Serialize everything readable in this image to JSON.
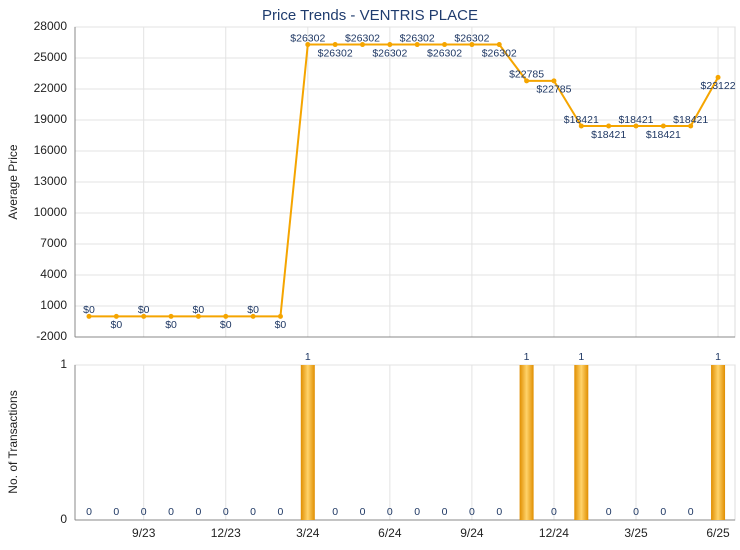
{
  "chart_data": [
    {
      "type": "line",
      "title": "Price Trends - VENTRIS PLACE",
      "ylabel": "Average Price",
      "color": "#f5a500",
      "values": [
        0,
        0,
        0,
        0,
        0,
        0,
        0,
        0,
        26302,
        26302,
        26302,
        26302,
        26302,
        26302,
        26302,
        26302,
        22785,
        22785,
        18421,
        18421,
        18421,
        18421,
        18421,
        23122
      ],
      "value_labels": [
        "$0",
        "$0",
        "$0",
        "$0",
        "$0",
        "$0",
        "$0",
        "$0",
        "$26302",
        "$26302",
        "$26302",
        "$26302",
        "$26302",
        "$26302",
        "$26302",
        "$26302",
        "$22785",
        "$22785",
        "$18421",
        "$18421",
        "$18421",
        "$18421",
        "$18421",
        "$23122"
      ],
      "ylim": [
        -2000,
        28000
      ],
      "yticks": [
        -2000,
        1000,
        4000,
        7000,
        10000,
        13000,
        16000,
        19000,
        22000,
        25000,
        28000
      ],
      "grid": true
    },
    {
      "type": "bar",
      "ylabel": "No. of Transactions",
      "color": "#f0a000",
      "categories": [
        null,
        null,
        "9/23",
        null,
        null,
        "12/23",
        null,
        null,
        "3/24",
        null,
        null,
        "6/24",
        null,
        null,
        "9/24",
        null,
        null,
        "12/24",
        null,
        null,
        "3/25",
        null,
        null,
        "6/25"
      ],
      "values": [
        0,
        0,
        0,
        0,
        0,
        0,
        0,
        0,
        1,
        0,
        0,
        0,
        0,
        0,
        0,
        0,
        1,
        0,
        1,
        0,
        0,
        0,
        0,
        1
      ],
      "ylim": [
        0,
        1
      ],
      "yticks": [
        0,
        1
      ],
      "grid": true
    }
  ]
}
